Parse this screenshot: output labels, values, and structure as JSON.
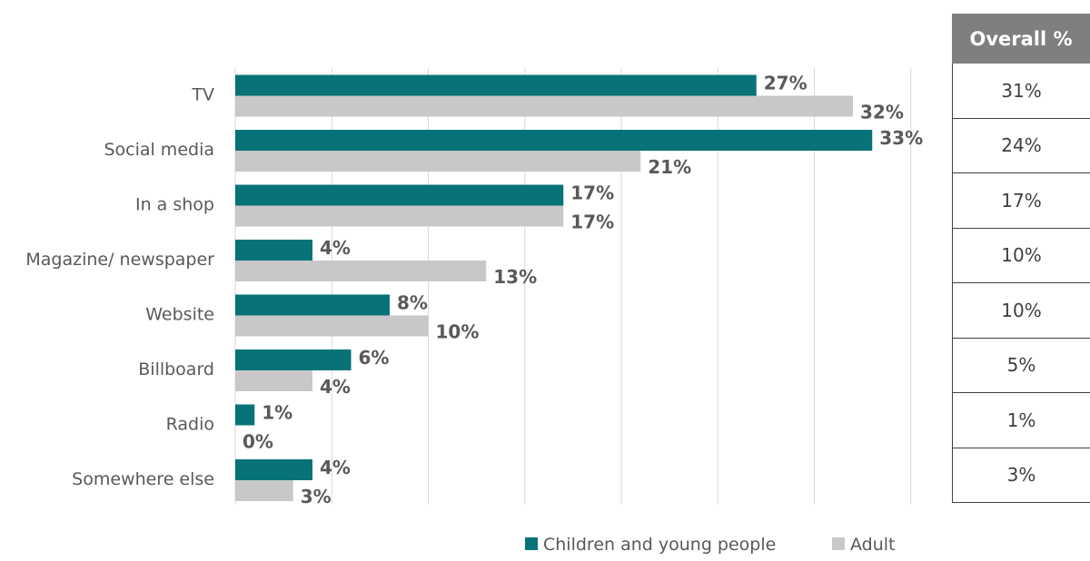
{
  "chart_data": {
    "type": "bar",
    "orientation": "horizontal",
    "categories": [
      "TV",
      "Social media",
      "In a shop",
      "Magazine/ newspaper",
      "Website",
      "Billboard",
      "Radio",
      "Somewhere else"
    ],
    "series": [
      {
        "name": "Children and young people",
        "color": "#077378",
        "values": [
          27,
          33,
          17,
          4,
          8,
          6,
          1,
          4
        ],
        "labels": [
          "27%",
          "33%",
          "17%",
          "4%",
          "8%",
          "6%",
          "1%",
          "4%"
        ]
      },
      {
        "name": "Adult",
        "color": "#c8c8c8",
        "values": [
          32,
          21,
          17,
          13,
          10,
          4,
          0,
          3
        ],
        "labels": [
          "32%",
          "21%",
          "17%",
          "13%",
          "10%",
          "4%",
          "0%",
          "3%"
        ]
      }
    ],
    "xlim": [
      0,
      35
    ],
    "grid": true,
    "legend": "bottom"
  },
  "overall_table": {
    "header": "Overall %",
    "values": [
      "31%",
      "24%",
      "17%",
      "10%",
      "10%",
      "5%",
      "1%",
      "3%"
    ]
  },
  "colors": {
    "header_bg": "#7f7f7f",
    "children": "#077378",
    "adult": "#c8c8c8"
  }
}
